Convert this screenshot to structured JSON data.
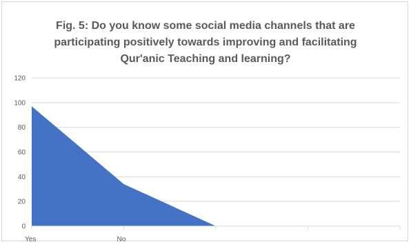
{
  "chart_data": {
    "type": "area",
    "title_lines": [
      "Fig. 5: Do you know some social media channels that are",
      "participating positively towards improving and facilitating",
      "Qur'anic Teaching and learning?"
    ],
    "categories": [
      "Yes",
      "No",
      "",
      "",
      ""
    ],
    "values": [
      97,
      34,
      0,
      null,
      null
    ],
    "y_ticks": [
      "0",
      "20",
      "40",
      "60",
      "80",
      "100",
      "120"
    ],
    "ylim": [
      0,
      120
    ],
    "grid": true,
    "legend": "none",
    "colors": {
      "area": "#4472c4",
      "grid": "#d9d9d9",
      "text": "#595959"
    }
  }
}
